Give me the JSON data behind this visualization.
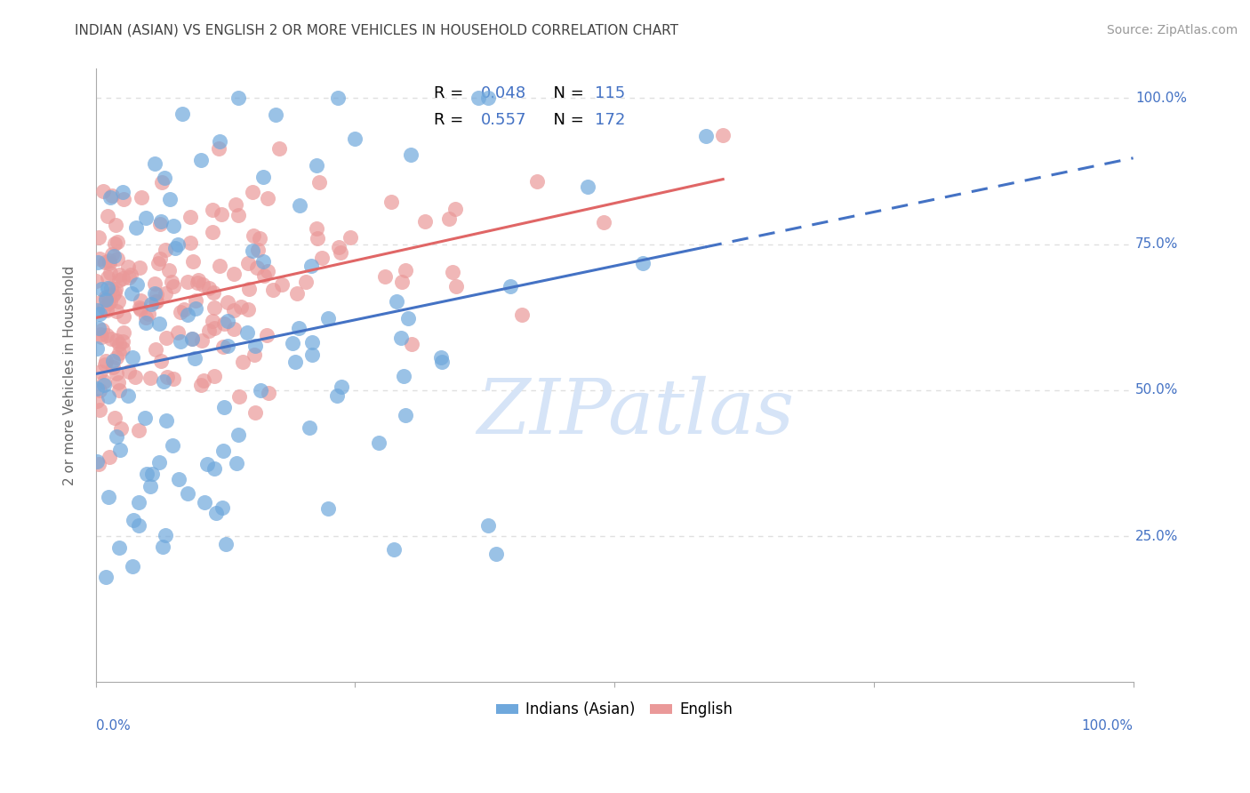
{
  "title": "INDIAN (ASIAN) VS ENGLISH 2 OR MORE VEHICLES IN HOUSEHOLD CORRELATION CHART",
  "source": "Source: ZipAtlas.com",
  "ylabel": "2 or more Vehicles in Household",
  "blue_color": "#6fa8dc",
  "pink_color": "#ea9999",
  "blue_line_color": "#4472c4",
  "pink_line_color": "#e06666",
  "title_color": "#434343",
  "source_color": "#999999",
  "axis_color": "#aaaaaa",
  "label_color": "#4472c4",
  "watermark_color": "#d6e4f7",
  "background_color": "#ffffff",
  "grid_color": "#e0e0e0",
  "blue_r": 0.048,
  "pink_r": 0.557,
  "blue_n": 115,
  "pink_n": 172
}
